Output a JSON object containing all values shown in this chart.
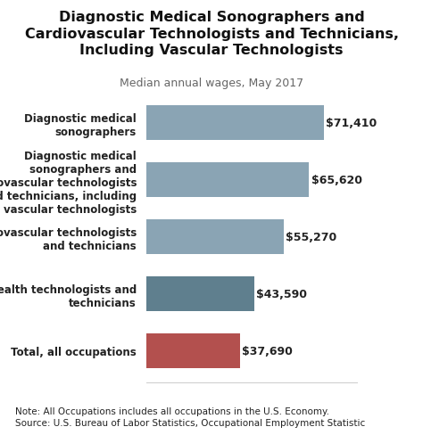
{
  "title_line1": "Diagnostic Medical Sonographers and",
  "title_line2": "Cardiovascular Technologists and Technicians,",
  "title_line3": "Including Vascular Technologists",
  "subtitle": "Median annual wages, May 2017",
  "categories": [
    "Total, all occupations",
    "Health technologists and\ntechnicians",
    "Cardiovascular technologists\nand technicians",
    "Diagnostic medical\nsonographers and\ncardiovascular technologists\nand technicians, including\nvascular technologists",
    "Diagnostic medical\nsonographers"
  ],
  "values": [
    37690,
    43590,
    55270,
    65620,
    71410
  ],
  "labels": [
    "$37,690",
    "$43,590",
    "$55,270",
    "$65,620",
    "$71,410"
  ],
  "colors": [
    "#b3504e",
    "#5f7f8e",
    "#8aa4b4",
    "#8aa4b4",
    "#8aa4b4"
  ],
  "note": "Note: All Occupations includes all occupations in the U.S. Economy.\nSource: U.S. Bureau of Labor Statistics, Occupational Employment Statistic",
  "xlim": [
    0,
    85000
  ],
  "background_color": "#ffffff",
  "bar_height": 0.62,
  "title_fontsize": 11.5,
  "subtitle_fontsize": 9,
  "label_fontsize": 8.5,
  "value_fontsize": 9,
  "note_fontsize": 7.5
}
